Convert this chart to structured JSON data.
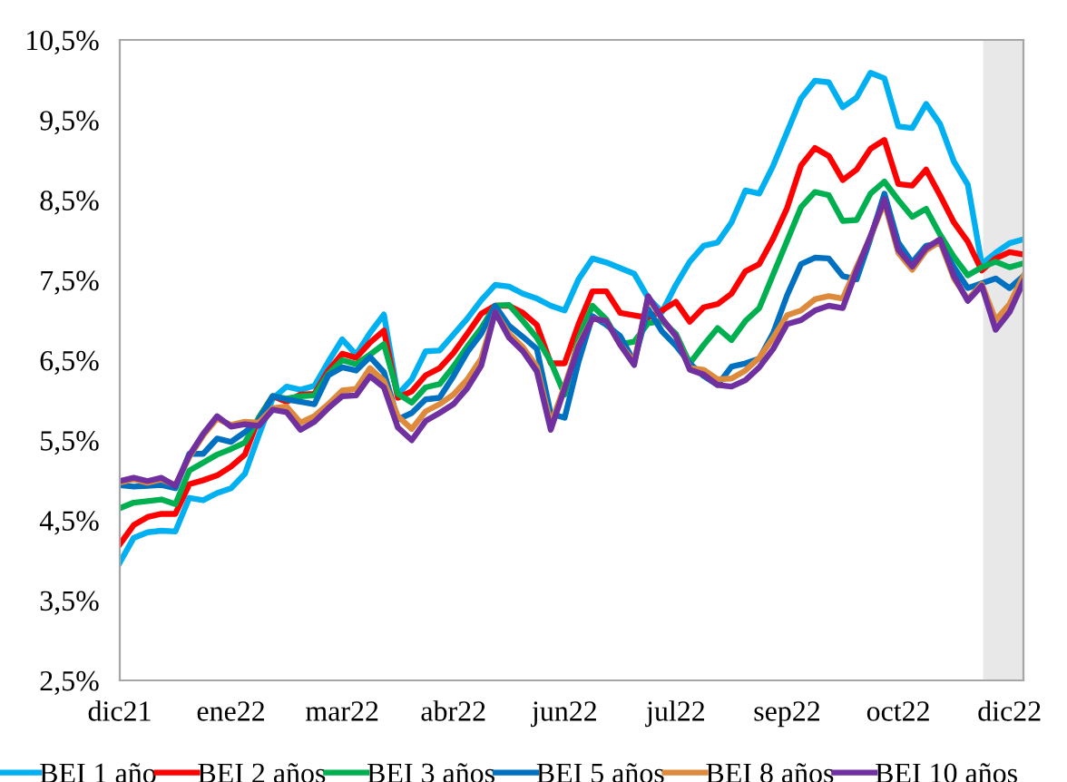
{
  "chart_data": {
    "type": "line",
    "ylim": [
      2.5,
      10.5
    ],
    "categories": [
      "dic21",
      null,
      null,
      null,
      null,
      null,
      null,
      null,
      "ene22",
      null,
      null,
      null,
      null,
      null,
      null,
      null,
      "mar22",
      null,
      null,
      null,
      null,
      null,
      null,
      null,
      "abr22",
      null,
      null,
      null,
      null,
      null,
      null,
      null,
      "jun22",
      null,
      null,
      null,
      null,
      null,
      null,
      null,
      "jul22",
      null,
      null,
      null,
      null,
      null,
      null,
      null,
      "sep22",
      null,
      null,
      null,
      null,
      null,
      null,
      null,
      "oct22",
      null,
      null,
      null,
      null,
      null,
      null,
      null,
      "dic22",
      null
    ],
    "yticks": [
      {
        "value": 2.5,
        "label": "2,5%"
      },
      {
        "value": 3.5,
        "label": "3,5%"
      },
      {
        "value": 4.5,
        "label": "4,5%"
      },
      {
        "value": 5.5,
        "label": "5,5%"
      },
      {
        "value": 6.5,
        "label": "6,5%"
      },
      {
        "value": 7.5,
        "label": "7,5%"
      },
      {
        "value": 8.5,
        "label": "8,5%"
      },
      {
        "value": 9.5,
        "label": "9,5%"
      },
      {
        "value": 10.5,
        "label": "10,5%"
      }
    ],
    "grid": false,
    "legend": "bottom",
    "line_style": "solid",
    "series": [
      {
        "name": "BEI 1 año",
        "color": "#00b0f0",
        "values": [
          3.97,
          4.28,
          4.35,
          4.37,
          4.36,
          4.78,
          4.75,
          4.84,
          4.9,
          5.08,
          5.56,
          6.02,
          6.17,
          6.13,
          6.18,
          6.48,
          6.76,
          6.57,
          6.84,
          7.07,
          6.07,
          6.26,
          6.61,
          6.62,
          6.82,
          7.02,
          7.25,
          7.44,
          7.42,
          7.33,
          7.27,
          7.18,
          7.12,
          7.51,
          7.77,
          7.72,
          7.65,
          7.58,
          7.28,
          7.1,
          7.44,
          7.73,
          7.93,
          7.97,
          8.22,
          8.62,
          8.58,
          8.93,
          9.35,
          9.77,
          9.99,
          9.97,
          9.66,
          9.78,
          10.09,
          10.02,
          9.42,
          9.4,
          9.7,
          9.45,
          8.98,
          8.69,
          7.7,
          7.84,
          7.96,
          8.01
        ]
      },
      {
        "name": "BEI 2 años",
        "color": "#ff0000",
        "values": [
          4.2,
          4.44,
          4.54,
          4.58,
          4.58,
          4.95,
          5.0,
          5.06,
          5.17,
          5.32,
          5.78,
          6.05,
          5.98,
          6.07,
          6.08,
          6.37,
          6.58,
          6.53,
          6.72,
          6.87,
          6.03,
          6.11,
          6.31,
          6.4,
          6.59,
          6.83,
          7.08,
          7.18,
          7.18,
          7.09,
          6.94,
          6.46,
          6.46,
          6.95,
          7.36,
          7.36,
          7.09,
          7.06,
          7.03,
          7.12,
          7.23,
          6.98,
          7.16,
          7.2,
          7.33,
          7.61,
          7.7,
          8.02,
          8.4,
          8.93,
          9.15,
          9.05,
          8.75,
          8.88,
          9.14,
          9.25,
          8.7,
          8.68,
          8.88,
          8.56,
          8.22,
          7.98,
          7.62,
          7.77,
          7.85,
          7.82
        ]
      },
      {
        "name": "BEI 3 años",
        "color": "#00b050",
        "values": [
          4.65,
          4.72,
          4.74,
          4.76,
          4.7,
          5.12,
          5.22,
          5.32,
          5.39,
          5.47,
          5.78,
          6.05,
          6.02,
          6.05,
          6.06,
          6.33,
          6.5,
          6.45,
          6.57,
          6.7,
          6.08,
          5.97,
          6.16,
          6.2,
          6.42,
          6.67,
          6.9,
          7.18,
          7.19,
          6.99,
          6.78,
          6.48,
          6.07,
          6.77,
          7.18,
          7.01,
          6.7,
          6.73,
          6.96,
          6.99,
          6.83,
          6.46,
          6.69,
          6.9,
          6.75,
          6.99,
          7.15,
          7.57,
          7.99,
          8.41,
          8.6,
          8.56,
          8.24,
          8.25,
          8.58,
          8.73,
          8.5,
          8.29,
          8.39,
          8.07,
          7.79,
          7.56,
          7.66,
          7.73,
          7.66,
          7.71
        ]
      },
      {
        "name": "BEI 5 años",
        "color": "#0070c0",
        "values": [
          4.94,
          4.92,
          4.93,
          4.94,
          4.9,
          5.33,
          5.33,
          5.52,
          5.48,
          5.6,
          5.75,
          6.05,
          6.01,
          5.98,
          5.95,
          6.31,
          6.41,
          6.37,
          6.54,
          6.35,
          5.76,
          5.84,
          6.01,
          6.03,
          6.3,
          6.6,
          6.83,
          7.18,
          6.93,
          6.79,
          6.64,
          5.83,
          5.78,
          6.48,
          7.05,
          6.94,
          6.8,
          6.48,
          7.14,
          6.86,
          6.68,
          6.46,
          6.3,
          6.19,
          6.42,
          6.46,
          6.52,
          6.84,
          7.31,
          7.7,
          7.78,
          7.77,
          7.55,
          7.51,
          8.02,
          8.58,
          7.97,
          7.72,
          7.93,
          7.96,
          7.66,
          7.4,
          7.46,
          7.52,
          7.4,
          7.55
        ]
      },
      {
        "name": "BEI 8 años",
        "color": "#dd8a3c",
        "values": [
          4.97,
          5.01,
          4.97,
          5.01,
          4.94,
          5.29,
          5.56,
          5.77,
          5.69,
          5.73,
          5.72,
          5.9,
          5.92,
          5.72,
          5.8,
          5.95,
          6.12,
          6.14,
          6.4,
          6.24,
          5.8,
          5.64,
          5.86,
          5.95,
          6.07,
          6.26,
          6.52,
          7.1,
          6.83,
          6.66,
          6.42,
          5.7,
          6.18,
          6.7,
          7.02,
          6.99,
          6.69,
          6.48,
          7.28,
          7.02,
          6.8,
          6.4,
          6.38,
          6.26,
          6.27,
          6.37,
          6.53,
          6.78,
          7.06,
          7.12,
          7.26,
          7.3,
          7.27,
          7.66,
          8.04,
          8.47,
          7.84,
          7.63,
          7.87,
          7.98,
          7.52,
          7.26,
          7.45,
          7.0,
          7.2,
          7.55
        ]
      },
      {
        "name": "BEI 10 años",
        "color": "#7030a0",
        "values": [
          4.99,
          5.03,
          4.99,
          5.03,
          4.93,
          5.31,
          5.58,
          5.8,
          5.67,
          5.7,
          5.68,
          5.88,
          5.85,
          5.63,
          5.73,
          5.9,
          6.05,
          6.06,
          6.3,
          6.16,
          5.66,
          5.5,
          5.74,
          5.84,
          5.95,
          6.15,
          6.43,
          7.1,
          6.78,
          6.61,
          6.36,
          5.63,
          6.15,
          6.67,
          7.02,
          6.99,
          6.69,
          6.44,
          7.3,
          7.02,
          6.8,
          6.38,
          6.32,
          6.19,
          6.17,
          6.25,
          6.41,
          6.64,
          6.95,
          7.0,
          7.12,
          7.18,
          7.15,
          7.62,
          8.05,
          8.51,
          7.88,
          7.67,
          7.9,
          8.01,
          7.55,
          7.24,
          7.43,
          6.88,
          7.1,
          7.48
        ]
      }
    ]
  }
}
